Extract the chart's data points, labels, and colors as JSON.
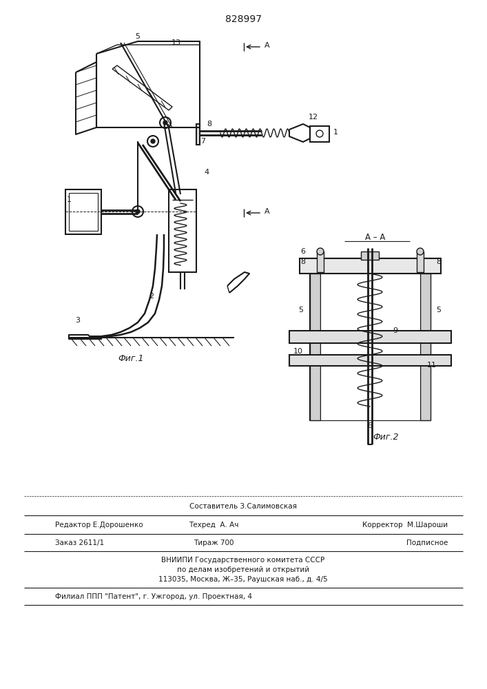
{
  "title": "828997",
  "title_fontsize": 10,
  "fig_width": 7.07,
  "fig_height": 10.0,
  "bg_color": "#ffffff",
  "line_color": "#1a1a1a",
  "fig1_label": "Фиг.1",
  "fig2_label": "Фиг.2",
  "footer": {
    "line1_center": "Составитель З.Салимовская",
    "line2_left": "Редактор Е.Дорошенко",
    "line2_center": "Техред  А. Ач",
    "line2_right": "Корректор  М.Шароши",
    "line3_left": "Заказ 2611/1",
    "line3_center": "Тираж 700",
    "line3_right": "Подписное",
    "line4": "ВНИИПИ Государственного комитета СССР",
    "line5": "по делам изобретений и открытий",
    "line6": "113035, Москва, Ж–35, Раушская наб., д. 4/5",
    "line7": "Филиал ППП \"Патент\", г. Ужгород, ул. Проектная, 4"
  }
}
